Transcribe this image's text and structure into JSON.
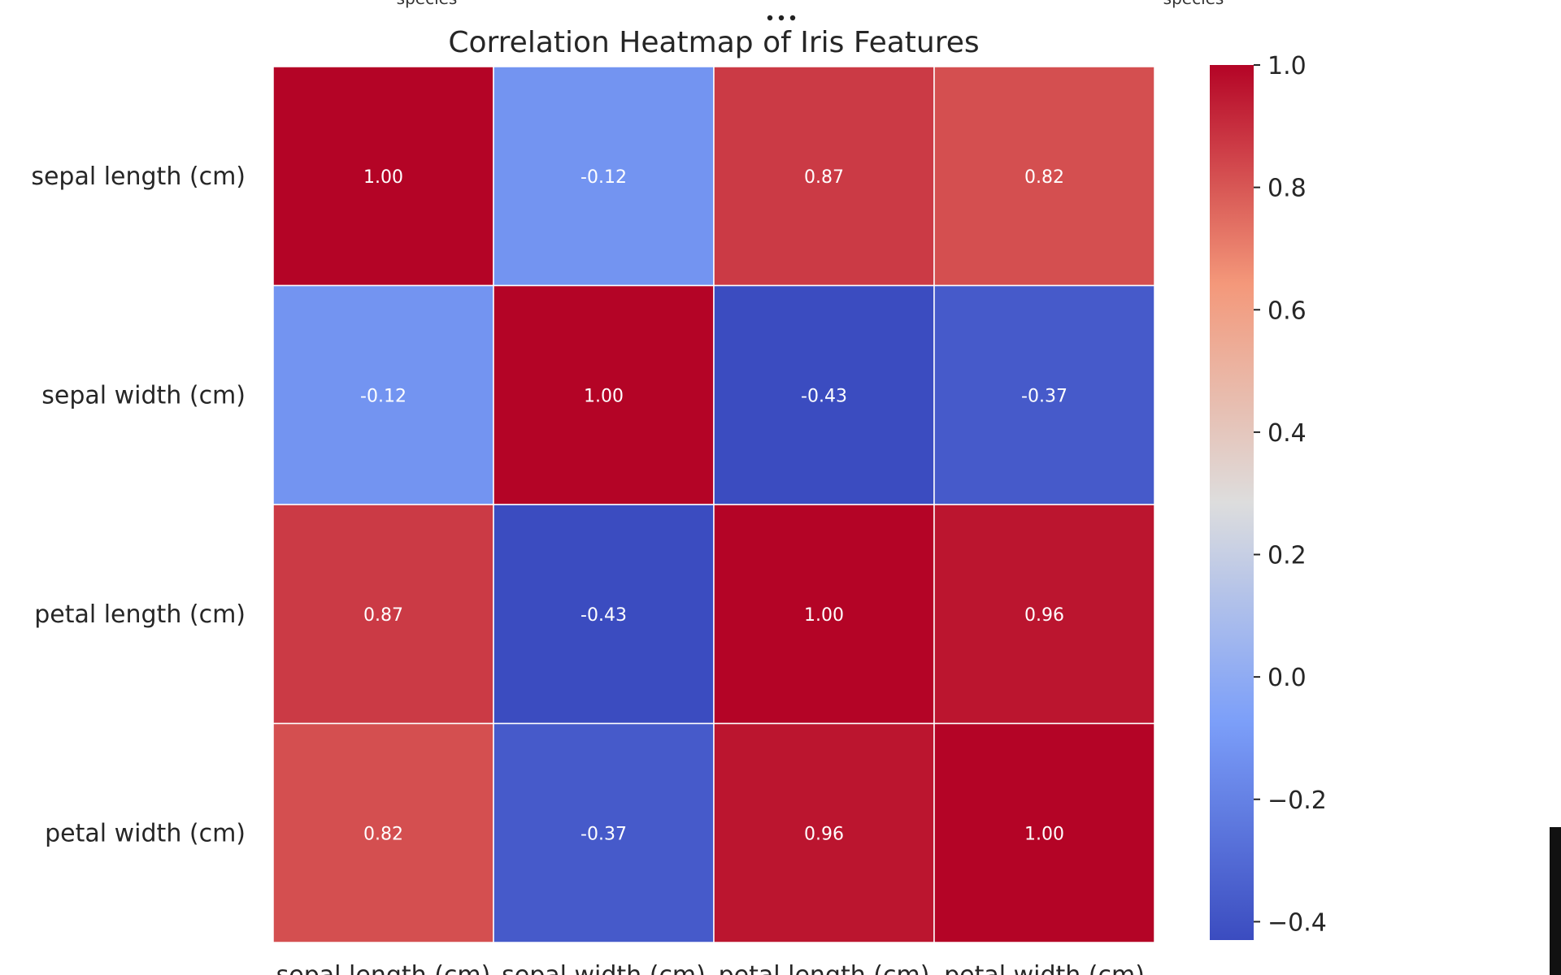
{
  "top_clipped_labels": [
    "species",
    "species"
  ],
  "icons": {
    "more": "more-horizontal-icon"
  },
  "chart_data": {
    "type": "heatmap",
    "title": "Correlation Heatmap of Iris Features",
    "rows": [
      "sepal length (cm)",
      "sepal width (cm)",
      "petal length (cm)",
      "petal width (cm)"
    ],
    "columns": [
      "sepal length (cm)",
      "sepal width (cm)",
      "petal length (cm)",
      "petal width (cm)"
    ],
    "values": [
      [
        1.0,
        -0.12,
        0.87,
        0.82
      ],
      [
        -0.12,
        1.0,
        -0.43,
        -0.37
      ],
      [
        0.87,
        -0.43,
        1.0,
        0.96
      ],
      [
        0.82,
        -0.37,
        0.96,
        1.0
      ]
    ],
    "annotation_format": "0.00",
    "colormap": "coolwarm",
    "colorbar": {
      "range": [
        -0.43,
        1.0
      ],
      "ticks": [
        1.0,
        0.8,
        0.6,
        0.4,
        0.2,
        0.0,
        -0.2,
        -0.4
      ],
      "tick_labels": [
        "1.0",
        "0.8",
        "0.6",
        "0.4",
        "0.2",
        "0.0",
        "−0.2",
        "−0.4"
      ]
    },
    "colors": {
      "low": "#3b4cc0",
      "mid": "#dddddd",
      "high": "#b40426",
      "annotation_text": "#ffffff",
      "cell_border": "#ffffff"
    }
  }
}
